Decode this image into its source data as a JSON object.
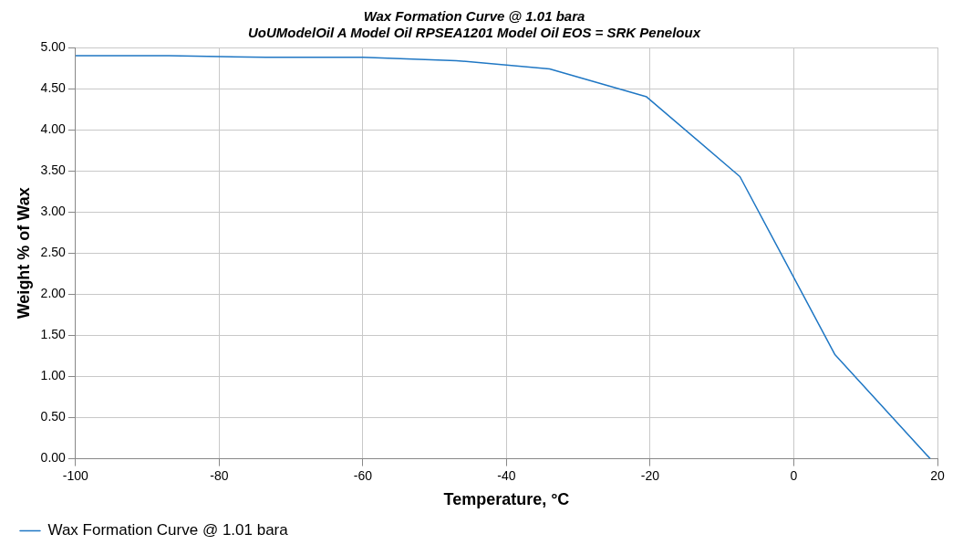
{
  "chart_data": {
    "type": "line",
    "title": "Wax Formation Curve @ 1.01 bara",
    "subtitle": "UoUModelOil A Model Oil RPSEA1201 Model Oil EOS = SRK Peneloux",
    "xlabel": "Temperature, °C",
    "ylabel": "Weight % of Wax",
    "x": [
      -100,
      -87,
      -73.5,
      -60,
      -47,
      -34,
      -20.5,
      -7.5,
      5.7,
      19
    ],
    "series": [
      {
        "name": "Wax Formation Curve @ 1.01 bara",
        "color": "#1f77c4",
        "values": [
          4.9,
          4.9,
          4.88,
          4.88,
          4.84,
          4.74,
          4.4,
          3.43,
          1.27,
          0
        ]
      }
    ],
    "xlim": [
      -100,
      20
    ],
    "xticks": [
      -100,
      -80,
      -60,
      -40,
      -20,
      0,
      20
    ],
    "ylim": [
      0,
      5
    ],
    "yticks": [
      {
        "value": 0,
        "label": "0.00"
      },
      {
        "value": 0.5,
        "label": "0.50"
      },
      {
        "value": 1,
        "label": "1.00"
      },
      {
        "value": 1.5,
        "label": "1.50"
      },
      {
        "value": 2,
        "label": "2.00"
      },
      {
        "value": 2.5,
        "label": "2.50"
      },
      {
        "value": 3,
        "label": "3.00"
      },
      {
        "value": 3.5,
        "label": "3.50"
      },
      {
        "value": 4,
        "label": "4.00"
      },
      {
        "value": 4.5,
        "label": "4.50"
      },
      {
        "value": 5,
        "label": "5.00"
      }
    ],
    "grid": true,
    "legend": "bottom left",
    "marker": "none",
    "line_style": "solid"
  }
}
